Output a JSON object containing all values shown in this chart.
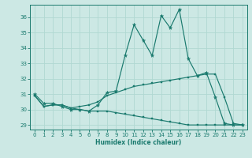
{
  "xlabel": "Humidex (Indice chaleur)",
  "bg_color": "#cce8e4",
  "grid_color": "#b0d8d2",
  "line_color": "#1a7a6e",
  "xlim": [
    -0.5,
    23.5
  ],
  "ylim": [
    28.7,
    36.8
  ],
  "yticks": [
    29,
    30,
    31,
    32,
    33,
    34,
    35,
    36
  ],
  "xticks": [
    0,
    1,
    2,
    3,
    4,
    5,
    6,
    7,
    8,
    9,
    10,
    11,
    12,
    13,
    14,
    15,
    16,
    17,
    18,
    19,
    20,
    21,
    22,
    23
  ],
  "line1_y": [
    31.0,
    30.4,
    30.4,
    30.2,
    30.0,
    30.0,
    29.9,
    30.3,
    31.1,
    31.2,
    33.5,
    35.5,
    34.5,
    33.5,
    36.1,
    35.3,
    36.5,
    33.3,
    32.2,
    32.4,
    30.8,
    29.1,
    29.0,
    29.0
  ],
  "line2_y": [
    30.9,
    30.2,
    30.3,
    30.3,
    30.1,
    30.2,
    30.3,
    30.5,
    30.9,
    31.1,
    31.3,
    31.5,
    31.6,
    31.7,
    31.8,
    31.9,
    32.0,
    32.1,
    32.2,
    32.3,
    32.3,
    30.8,
    29.1,
    29.0
  ],
  "line3_y": [
    30.9,
    30.2,
    30.3,
    30.3,
    30.1,
    30.0,
    29.9,
    29.9,
    29.9,
    29.8,
    29.7,
    29.6,
    29.5,
    29.4,
    29.3,
    29.2,
    29.1,
    29.0,
    29.0,
    29.0,
    29.0,
    29.0,
    29.0,
    29.0
  ]
}
